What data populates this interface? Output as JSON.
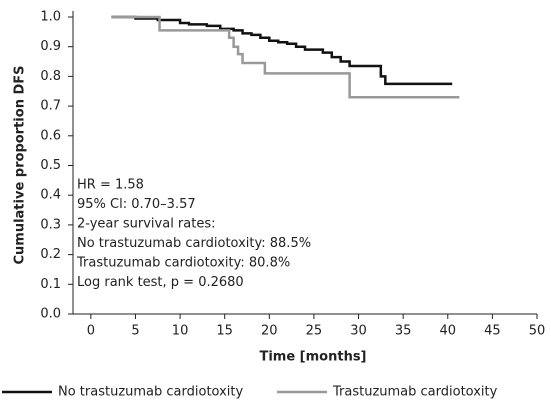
{
  "chart_data": {
    "type": "line",
    "drawstyle": "steps-post",
    "xlabel": "Time [months]",
    "ylabel": "Cumulative proportion DFS",
    "xlim": [
      -2,
      50
    ],
    "ylim": [
      0,
      1
    ],
    "xticks": [
      0,
      5,
      10,
      15,
      20,
      25,
      30,
      35,
      40,
      45,
      50
    ],
    "yticks": [
      {
        "value": 0,
        "label": "0.0"
      },
      0.1,
      0.2,
      0.3,
      0.4,
      0.5,
      0.6,
      0.7,
      0.8,
      0.9,
      {
        "value": 1,
        "label": "1.0"
      }
    ],
    "series": [
      {
        "name": "No trastuzumab cardiotoxity",
        "color": "#111111",
        "x": [
          2.3,
          5,
          7.5,
          10,
          11,
          13,
          14.5,
          16,
          17,
          18,
          19,
          20,
          21,
          22,
          23,
          24,
          26,
          27,
          28,
          29,
          32.5,
          33,
          40.5
        ],
        "values": [
          1.0,
          0.995,
          0.99,
          0.98,
          0.975,
          0.97,
          0.96,
          0.955,
          0.945,
          0.94,
          0.93,
          0.92,
          0.915,
          0.91,
          0.9,
          0.89,
          0.88,
          0.865,
          0.85,
          0.835,
          0.8,
          0.775,
          0.775
        ]
      },
      {
        "name": "Trastuzumab cardiotoxity",
        "color": "#999999",
        "x": [
          2.3,
          7.7,
          15.5,
          16,
          16.5,
          17,
          19.5,
          29,
          41.3
        ],
        "values": [
          1.0,
          0.955,
          0.93,
          0.9,
          0.875,
          0.845,
          0.81,
          0.73,
          0.73
        ]
      }
    ],
    "annotations": [
      "HR = 1.58",
      "95% Cl: 0.70–3.57",
      "2-year survival rates:",
      "No trastuzumab cardiotoxity: 88.5%",
      "Trastuzumab cardiotoxity: 80.8%",
      "Log rank test, p = 0.2680"
    ]
  }
}
